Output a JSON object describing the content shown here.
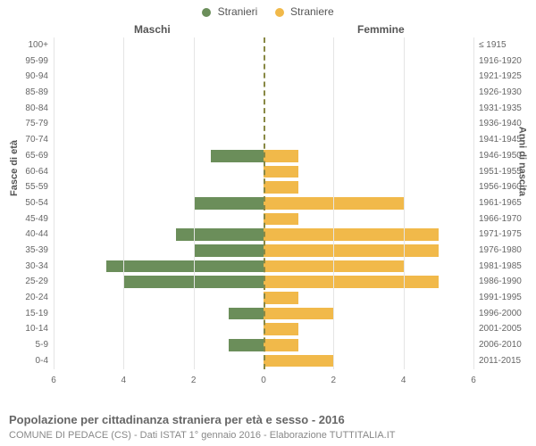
{
  "chart": {
    "type": "population-pyramid",
    "background_color": "#ffffff",
    "grid_color": "#e5e5e5",
    "center_line_color": "#888844",
    "font_color": "#666666",
    "legend": {
      "male": {
        "label": "Stranieri",
        "color": "#6b8e5a"
      },
      "female": {
        "label": "Straniere",
        "color": "#f1b94a"
      }
    },
    "section_labels": {
      "left": "Maschi",
      "right": "Femmine"
    },
    "axis_titles": {
      "left": "Fasce di età",
      "right": "Anni di nascita"
    },
    "xaxis": {
      "max": 6,
      "ticks": [
        6,
        4,
        2,
        0,
        2,
        4,
        6
      ]
    },
    "age_labels": [
      "100+",
      "95-99",
      "90-94",
      "85-89",
      "80-84",
      "75-79",
      "70-74",
      "65-69",
      "60-64",
      "55-59",
      "50-54",
      "45-49",
      "40-44",
      "35-39",
      "30-34",
      "25-29",
      "20-24",
      "15-19",
      "10-14",
      "5-9",
      "0-4"
    ],
    "birth_labels": [
      "≤ 1915",
      "1916-1920",
      "1921-1925",
      "1926-1930",
      "1931-1935",
      "1936-1940",
      "1941-1945",
      "1946-1950",
      "1951-1955",
      "1956-1960",
      "1961-1965",
      "1966-1970",
      "1971-1975",
      "1976-1980",
      "1981-1985",
      "1986-1990",
      "1991-1995",
      "1996-2000",
      "2001-2005",
      "2006-2010",
      "2011-2015"
    ],
    "male_values": [
      0,
      0,
      0,
      0,
      0,
      0,
      0,
      1.5,
      0,
      0,
      2,
      0,
      2.5,
      2,
      4.5,
      4,
      0,
      1,
      0,
      1,
      0
    ],
    "female_values": [
      0,
      0,
      0,
      0,
      0,
      0,
      0,
      1,
      1,
      1,
      4,
      1,
      5,
      5,
      4,
      5,
      1,
      2,
      1,
      1,
      2
    ],
    "caption": "Popolazione per cittadinanza straniera per età e sesso - 2016",
    "subcaption": "COMUNE DI PEDACE (CS) - Dati ISTAT 1° gennaio 2016 - Elaborazione TUTTITALIA.IT"
  }
}
